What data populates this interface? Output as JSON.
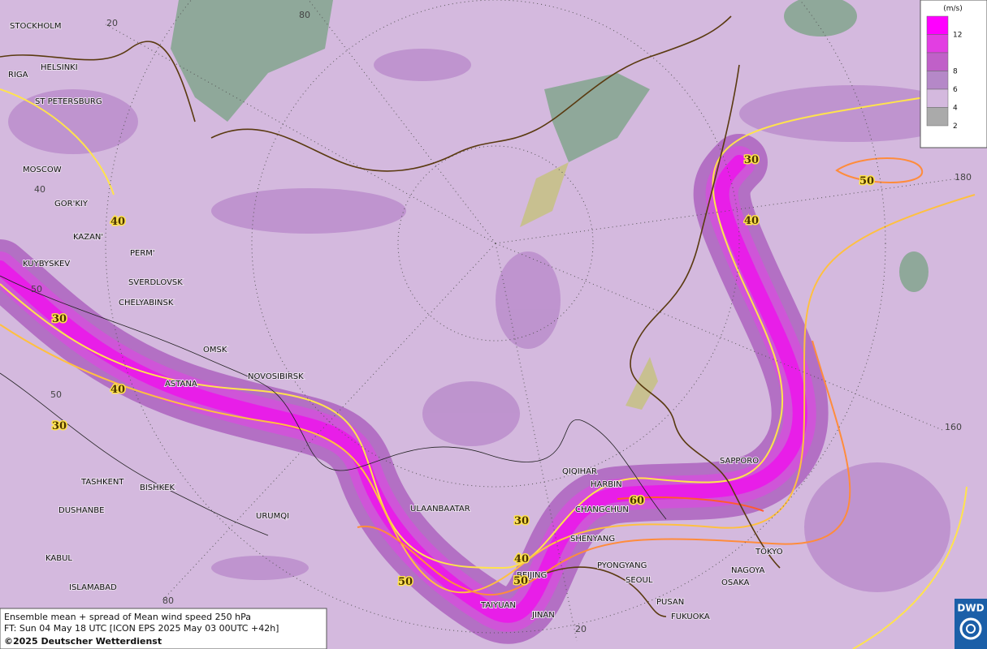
{
  "map": {
    "cities": [
      "STOCKHOLM",
      "HELSINKI",
      "RIGA",
      "ST PETERSBURG",
      "MOSCOW",
      "GOR'KIY",
      "KAZAN'",
      "PERM'",
      "KUYBYSKEV",
      "SVERDLOVSK",
      "CHELYABINSK",
      "OMSK",
      "NOVOSIBIRSK",
      "ASTANA",
      "TASHKENT",
      "BISHKEK",
      "DUSHANBE",
      "URUMQI",
      "KABUL",
      "ISLAMABAD",
      "ULAANBAATAR",
      "QIQIHAR",
      "HARBIN",
      "CHANGCHUN",
      "SHENYANG",
      "PYONGYANG",
      "SEOUL",
      "BEIJING",
      "TAIYUAN",
      "JINAN",
      "PUSAN",
      "FUKUOKA",
      "OSAKA",
      "NAGOYA",
      "TOKYO",
      "SAPPORO"
    ],
    "graticule_labels": [
      20,
      80,
      40,
      50,
      50,
      180,
      160,
      80,
      20
    ],
    "contour_labels": [
      30,
      50,
      40,
      40,
      30,
      40,
      30,
      60,
      30,
      40,
      50,
      50
    ],
    "legend": {
      "unit": "(m/s)",
      "ticks": [
        12,
        8,
        6,
        4,
        2
      ]
    },
    "footer": [
      "Ensemble mean + spread of Mean wind speed 250 hPa",
      "FT: Sun 04 May 18 UTC [ICON EPS 2025 May 03 00UTC +42h]",
      "©2025 Deutscher Wetterdienst"
    ],
    "logo": "DWD"
  }
}
